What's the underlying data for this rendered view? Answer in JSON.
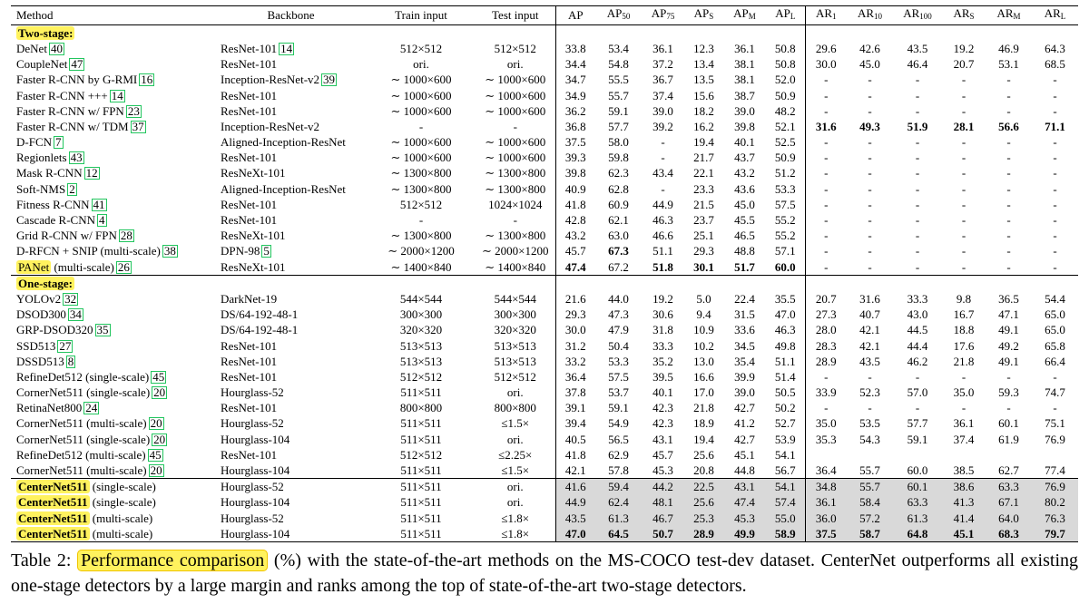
{
  "columns": [
    "Method",
    "Backbone",
    "Train input",
    "Test input",
    "AP",
    "AP",
    "AP",
    "AP",
    "AP",
    "AP",
    "AR",
    "AR",
    "AR",
    "AR",
    "AR",
    "AR"
  ],
  "column_subs": [
    "",
    "",
    "",
    "",
    "",
    "50",
    "75",
    "S",
    "M",
    "L",
    "1",
    "10",
    "100",
    "S",
    "M",
    "L"
  ],
  "two_stage_label": "Two-stage:",
  "one_stage_label": "One-stage:",
  "two_stage": [
    {
      "m": "DeNet",
      "n": "",
      "r": "40",
      "bb": "ResNet-101",
      "br": "14",
      "tr": "512×512",
      "te": "512×512",
      "v": [
        "33.8",
        "53.4",
        "36.1",
        "12.3",
        "36.1",
        "50.8",
        "29.6",
        "42.6",
        "43.5",
        "19.2",
        "46.9",
        "64.3"
      ]
    },
    {
      "m": "CoupleNet",
      "n": "",
      "r": "47",
      "bb": "ResNet-101",
      "br": "",
      "tr": "ori.",
      "te": "ori.",
      "v": [
        "34.4",
        "54.8",
        "37.2",
        "13.4",
        "38.1",
        "50.8",
        "30.0",
        "45.0",
        "46.4",
        "20.7",
        "53.1",
        "68.5"
      ]
    },
    {
      "m": "Faster R-CNN by G-RMI",
      "n": "",
      "r": "16",
      "bb": "Inception-ResNet-v2",
      "br": "39",
      "tr": "∼ 1000×600",
      "te": "∼ 1000×600",
      "v": [
        "34.7",
        "55.5",
        "36.7",
        "13.5",
        "38.1",
        "52.0",
        "-",
        "-",
        "-",
        "-",
        "-",
        "-"
      ]
    },
    {
      "m": "Faster R-CNN +++",
      "n": "",
      "r": "14",
      "bb": "ResNet-101",
      "br": "",
      "tr": "∼ 1000×600",
      "te": "∼ 1000×600",
      "v": [
        "34.9",
        "55.7",
        "37.4",
        "15.6",
        "38.7",
        "50.9",
        "-",
        "-",
        "-",
        "-",
        "-",
        "-"
      ]
    },
    {
      "m": "Faster R-CNN w/ FPN",
      "n": "",
      "r": "23",
      "bb": "ResNet-101",
      "br": "",
      "tr": "∼ 1000×600",
      "te": "∼ 1000×600",
      "v": [
        "36.2",
        "59.1",
        "39.0",
        "18.2",
        "39.0",
        "48.2",
        "-",
        "-",
        "-",
        "-",
        "-",
        "-"
      ]
    },
    {
      "m": "Faster R-CNN w/ TDM",
      "n": "",
      "r": "37",
      "bb": "Inception-ResNet-v2",
      "br": "",
      "tr": "-",
      "te": "-",
      "v": [
        "36.8",
        "57.7",
        "39.2",
        "16.2",
        "39.8",
        "52.1",
        "31.6",
        "49.3",
        "51.9",
        "28.1",
        "56.6",
        "71.1"
      ],
      "bold": [
        6,
        7,
        8,
        9,
        10,
        11
      ]
    },
    {
      "m": "D-FCN",
      "n": "",
      "r": "7",
      "bb": "Aligned-Inception-ResNet",
      "br": "",
      "tr": "∼ 1000×600",
      "te": "∼ 1000×600",
      "v": [
        "37.5",
        "58.0",
        "-",
        "19.4",
        "40.1",
        "52.5",
        "-",
        "-",
        "-",
        "-",
        "-",
        "-"
      ]
    },
    {
      "m": "Regionlets",
      "n": "",
      "r": "43",
      "bb": "ResNet-101",
      "br": "",
      "tr": "∼ 1000×600",
      "te": "∼ 1000×600",
      "v": [
        "39.3",
        "59.8",
        "-",
        "21.7",
        "43.7",
        "50.9",
        "-",
        "-",
        "-",
        "-",
        "-",
        "-"
      ]
    },
    {
      "m": "Mask R-CNN",
      "n": "",
      "r": "12",
      "bb": "ResNeXt-101",
      "br": "",
      "tr": "∼ 1300×800",
      "te": "∼ 1300×800",
      "v": [
        "39.8",
        "62.3",
        "43.4",
        "22.1",
        "43.2",
        "51.2",
        "-",
        "-",
        "-",
        "-",
        "-",
        "-"
      ]
    },
    {
      "m": "Soft-NMS",
      "n": "",
      "r": "2",
      "bb": "Aligned-Inception-ResNet",
      "br": "",
      "tr": "∼ 1300×800",
      "te": "∼ 1300×800",
      "v": [
        "40.9",
        "62.8",
        "-",
        "23.3",
        "43.6",
        "53.3",
        "-",
        "-",
        "-",
        "-",
        "-",
        "-"
      ]
    },
    {
      "m": "Fitness R-CNN",
      "n": "",
      "r": "41",
      "bb": "ResNet-101",
      "br": "",
      "tr": "512×512",
      "te": "1024×1024",
      "v": [
        "41.8",
        "60.9",
        "44.9",
        "21.5",
        "45.0",
        "57.5",
        "-",
        "-",
        "-",
        "-",
        "-",
        "-"
      ]
    },
    {
      "m": "Cascade R-CNN",
      "n": "",
      "r": "4",
      "bb": "ResNet-101",
      "br": "",
      "tr": "-",
      "te": "-",
      "v": [
        "42.8",
        "62.1",
        "46.3",
        "23.7",
        "45.5",
        "55.2",
        "-",
        "-",
        "-",
        "-",
        "-",
        "-"
      ]
    },
    {
      "m": "Grid R-CNN w/ FPN",
      "n": "",
      "r": "28",
      "bb": "ResNeXt-101",
      "br": "",
      "tr": "∼ 1300×800",
      "te": "∼ 1300×800",
      "v": [
        "43.2",
        "63.0",
        "46.6",
        "25.1",
        "46.5",
        "55.2",
        "-",
        "-",
        "-",
        "-",
        "-",
        "-"
      ]
    },
    {
      "m": "D-RFCN + SNIP (multi-scale)",
      "n": "",
      "r": "38",
      "bb": "DPN-98",
      "br": "5",
      "tr": "∼ 2000×1200",
      "te": "∼ 2000×1200",
      "v": [
        "45.7",
        "67.3",
        "51.1",
        "29.3",
        "48.8",
        "57.1",
        "-",
        "-",
        "-",
        "-",
        "-",
        "-"
      ],
      "bold": [
        1
      ]
    },
    {
      "m": "PANet",
      "n": "(multi-scale)",
      "r": "26",
      "bb": "ResNeXt-101",
      "br": "",
      "tr": "∼ 1400×840",
      "te": "∼ 1400×840",
      "v": [
        "47.4",
        "67.2",
        "51.8",
        "30.1",
        "51.7",
        "60.0",
        "-",
        "-",
        "-",
        "-",
        "-",
        "-"
      ],
      "bold": [
        0,
        2,
        3,
        4,
        5
      ],
      "hl": true
    }
  ],
  "one_stage": [
    {
      "m": "YOLOv2",
      "n": "",
      "r": "32",
      "bb": "DarkNet-19",
      "br": "",
      "tr": "544×544",
      "te": "544×544",
      "v": [
        "21.6",
        "44.0",
        "19.2",
        "5.0",
        "22.4",
        "35.5",
        "20.7",
        "31.6",
        "33.3",
        "9.8",
        "36.5",
        "54.4"
      ]
    },
    {
      "m": "DSOD300",
      "n": "",
      "r": "34",
      "bb": "DS/64-192-48-1",
      "br": "",
      "tr": "300×300",
      "te": "300×300",
      "v": [
        "29.3",
        "47.3",
        "30.6",
        "9.4",
        "31.5",
        "47.0",
        "27.3",
        "40.7",
        "43.0",
        "16.7",
        "47.1",
        "65.0"
      ]
    },
    {
      "m": "GRP-DSOD320",
      "n": "",
      "r": "35",
      "bb": "DS/64-192-48-1",
      "br": "",
      "tr": "320×320",
      "te": "320×320",
      "v": [
        "30.0",
        "47.9",
        "31.8",
        "10.9",
        "33.6",
        "46.3",
        "28.0",
        "42.1",
        "44.5",
        "18.8",
        "49.1",
        "65.0"
      ]
    },
    {
      "m": "SSD513",
      "n": "",
      "r": "27",
      "bb": "ResNet-101",
      "br": "",
      "tr": "513×513",
      "te": "513×513",
      "v": [
        "31.2",
        "50.4",
        "33.3",
        "10.2",
        "34.5",
        "49.8",
        "28.3",
        "42.1",
        "44.4",
        "17.6",
        "49.2",
        "65.8"
      ]
    },
    {
      "m": "DSSD513",
      "n": "",
      "r": "8",
      "bb": "ResNet-101",
      "br": "",
      "tr": "513×513",
      "te": "513×513",
      "v": [
        "33.2",
        "53.3",
        "35.2",
        "13.0",
        "35.4",
        "51.1",
        "28.9",
        "43.5",
        "46.2",
        "21.8",
        "49.1",
        "66.4"
      ]
    },
    {
      "m": "RefineDet512 (single-scale)",
      "n": "",
      "r": "45",
      "bb": "ResNet-101",
      "br": "",
      "tr": "512×512",
      "te": "512×512",
      "v": [
        "36.4",
        "57.5",
        "39.5",
        "16.6",
        "39.9",
        "51.4",
        "-",
        "-",
        "-",
        "-",
        "-",
        "-"
      ]
    },
    {
      "m": "CornerNet511 (single-scale)",
      "n": "",
      "r": "20",
      "bb": "Hourglass-52",
      "br": "",
      "tr": "511×511",
      "te": "ori.",
      "v": [
        "37.8",
        "53.7",
        "40.1",
        "17.0",
        "39.0",
        "50.5",
        "33.9",
        "52.3",
        "57.0",
        "35.0",
        "59.3",
        "74.7"
      ]
    },
    {
      "m": "RetinaNet800",
      "n": "",
      "r": "24",
      "bb": "ResNet-101",
      "br": "",
      "tr": "800×800",
      "te": "800×800",
      "v": [
        "39.1",
        "59.1",
        "42.3",
        "21.8",
        "42.7",
        "50.2",
        "-",
        "-",
        "-",
        "-",
        "-",
        "-"
      ]
    },
    {
      "m": "CornerNet511 (multi-scale)",
      "n": "",
      "r": "20",
      "bb": "Hourglass-52",
      "br": "",
      "tr": "511×511",
      "te": "≤1.5×",
      "v": [
        "39.4",
        "54.9",
        "42.3",
        "18.9",
        "41.2",
        "52.7",
        "35.0",
        "53.5",
        "57.7",
        "36.1",
        "60.1",
        "75.1"
      ]
    },
    {
      "m": "CornerNet511 (single-scale)",
      "n": "",
      "r": "20",
      "bb": "Hourglass-104",
      "br": "",
      "tr": "511×511",
      "te": "ori.",
      "v": [
        "40.5",
        "56.5",
        "43.1",
        "19.4",
        "42.7",
        "53.9",
        "35.3",
        "54.3",
        "59.1",
        "37.4",
        "61.9",
        "76.9"
      ]
    },
    {
      "m": "RefineDet512 (multi-scale)",
      "n": "",
      "r": "45",
      "bb": "ResNet-101",
      "br": "",
      "tr": "512×512",
      "te": "≤2.25×",
      "v": [
        "41.8",
        "62.9",
        "45.7",
        "25.6",
        "45.1",
        "54.1",
        "",
        "",
        "",
        "",
        "",
        ""
      ]
    },
    {
      "m": "CornerNet511 (multi-scale)",
      "n": "",
      "r": "20",
      "bb": "Hourglass-104",
      "br": "",
      "tr": "511×511",
      "te": "≤1.5×",
      "v": [
        "42.1",
        "57.8",
        "45.3",
        "20.8",
        "44.8",
        "56.7",
        "36.4",
        "55.7",
        "60.0",
        "38.5",
        "62.7",
        "77.4"
      ]
    }
  ],
  "ours": [
    {
      "m": "CenterNet511",
      "n": "(single-scale)",
      "bb": "Hourglass-52",
      "tr": "511×511",
      "te": "ori.",
      "v": [
        "41.6",
        "59.4",
        "44.2",
        "22.5",
        "43.1",
        "54.1",
        "34.8",
        "55.7",
        "60.1",
        "38.6",
        "63.3",
        "76.9"
      ]
    },
    {
      "m": "CenterNet511",
      "n": "(single-scale)",
      "bb": "Hourglass-104",
      "tr": "511×511",
      "te": "ori.",
      "v": [
        "44.9",
        "62.4",
        "48.1",
        "25.6",
        "47.4",
        "57.4",
        "36.1",
        "58.4",
        "63.3",
        "41.3",
        "67.1",
        "80.2"
      ]
    },
    {
      "m": "CenterNet511",
      "n": "(multi-scale)",
      "bb": "Hourglass-52",
      "tr": "511×511",
      "te": "≤1.8×",
      "v": [
        "43.5",
        "61.3",
        "46.7",
        "25.3",
        "45.3",
        "55.0",
        "36.0",
        "57.2",
        "61.3",
        "41.4",
        "64.0",
        "76.3"
      ]
    },
    {
      "m": "CenterNet511",
      "n": "(multi-scale)",
      "bb": "Hourglass-104",
      "tr": "511×511",
      "te": "≤1.8×",
      "v": [
        "47.0",
        "64.5",
        "50.7",
        "28.9",
        "49.9",
        "58.9",
        "37.5",
        "58.7",
        "64.8",
        "45.1",
        "68.3",
        "79.7"
      ],
      "bold": [
        0,
        1,
        2,
        3,
        4,
        5,
        6,
        7,
        8,
        9,
        10,
        11
      ]
    }
  ],
  "caption": {
    "prefix": "Table 2: ",
    "highlight": "Performance comparison",
    "rest": " (%) with the state-of-the-art methods on the MS-COCO test-dev dataset. CenterNet outperforms all existing one-stage detectors by a large margin and ranks among the top of state-of-the-art two-stage detectors."
  }
}
